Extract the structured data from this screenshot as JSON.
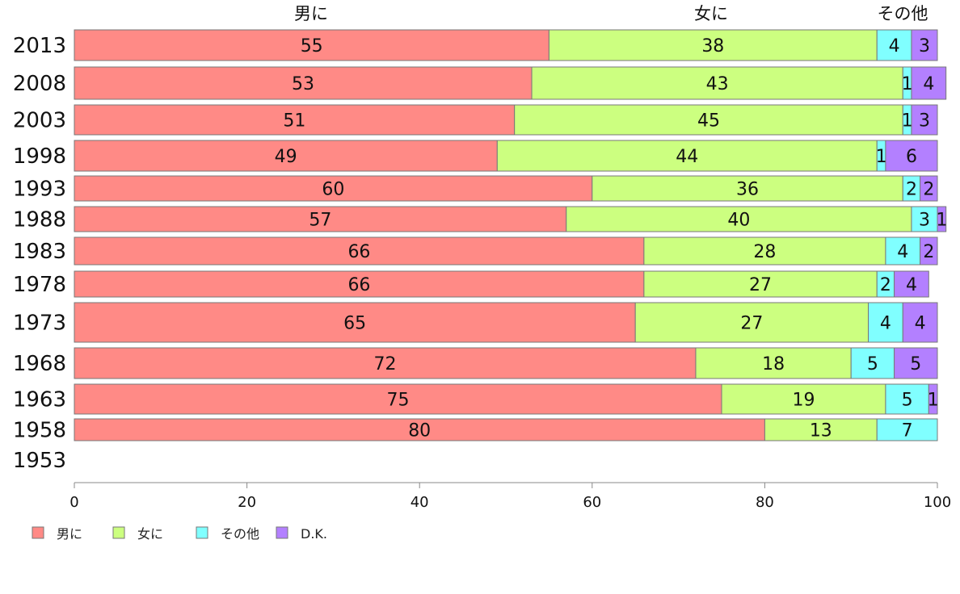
{
  "chart_data": {
    "type": "bar",
    "orientation": "horizontal",
    "stacked": true,
    "top_labels": [
      "男に",
      "女に",
      "その他"
    ],
    "categories": [
      "2013",
      "2008",
      "2003",
      "1998",
      "1993",
      "1988",
      "1983",
      "1978",
      "1973",
      "1968",
      "1963",
      "1958",
      "1953"
    ],
    "series": [
      {
        "name": "男に",
        "color": "#ff8a86",
        "values": [
          55,
          53,
          51,
          49,
          60,
          57,
          66,
          66,
          65,
          72,
          75,
          80,
          null
        ]
      },
      {
        "name": "女に",
        "color": "#ccff80",
        "values": [
          38,
          43,
          45,
          44,
          36,
          40,
          28,
          27,
          27,
          18,
          19,
          13,
          null
        ]
      },
      {
        "name": "その他",
        "color": "#80ffff",
        "values": [
          4,
          1,
          1,
          1,
          2,
          3,
          4,
          2,
          4,
          5,
          5,
          7,
          null
        ]
      },
      {
        "name": "D.K.",
        "color": "#b380ff",
        "values": [
          3,
          4,
          3,
          6,
          2,
          1,
          2,
          4,
          4,
          5,
          1,
          null,
          null
        ]
      }
    ],
    "xlim": [
      0,
      100
    ],
    "xticks": [
      0,
      20,
      40,
      60,
      80,
      100
    ],
    "legend_position": "bottom-left"
  }
}
